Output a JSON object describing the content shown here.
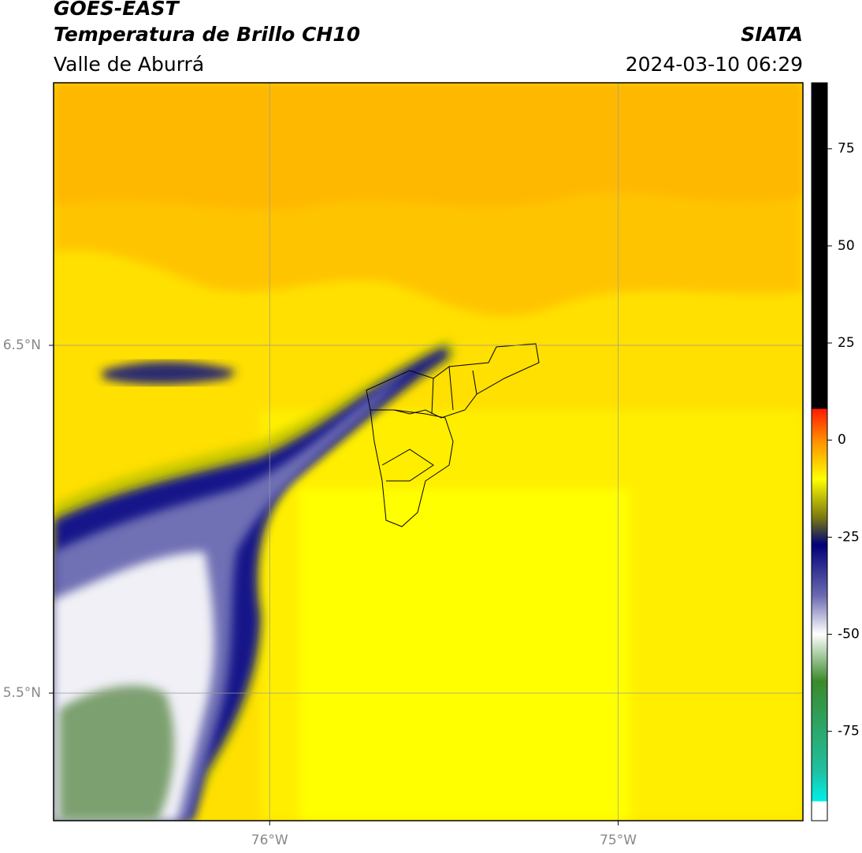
{
  "header": {
    "title": "GOES-EAST",
    "subtitle": "Temperatura de Brillo CH10",
    "source": "SIATA",
    "region": "Valle de Aburrá",
    "datetime": "2024-03-10 06:29"
  },
  "map": {
    "xlim": [
      -76.62,
      -74.47
    ],
    "ylim": [
      5.133,
      7.255
    ],
    "xticks": [
      {
        "value": -76,
        "label": "76°W"
      },
      {
        "value": -75,
        "label": "75°W"
      }
    ],
    "yticks": [
      {
        "value": 6.5,
        "label": "6.5°N"
      },
      {
        "value": 5.5,
        "label": "5.5°N"
      }
    ],
    "grid": true
  },
  "colorbar": {
    "lim": [
      -98,
      92
    ],
    "ticks": [
      75,
      50,
      25,
      0,
      -25,
      -50,
      -75
    ]
  }
}
